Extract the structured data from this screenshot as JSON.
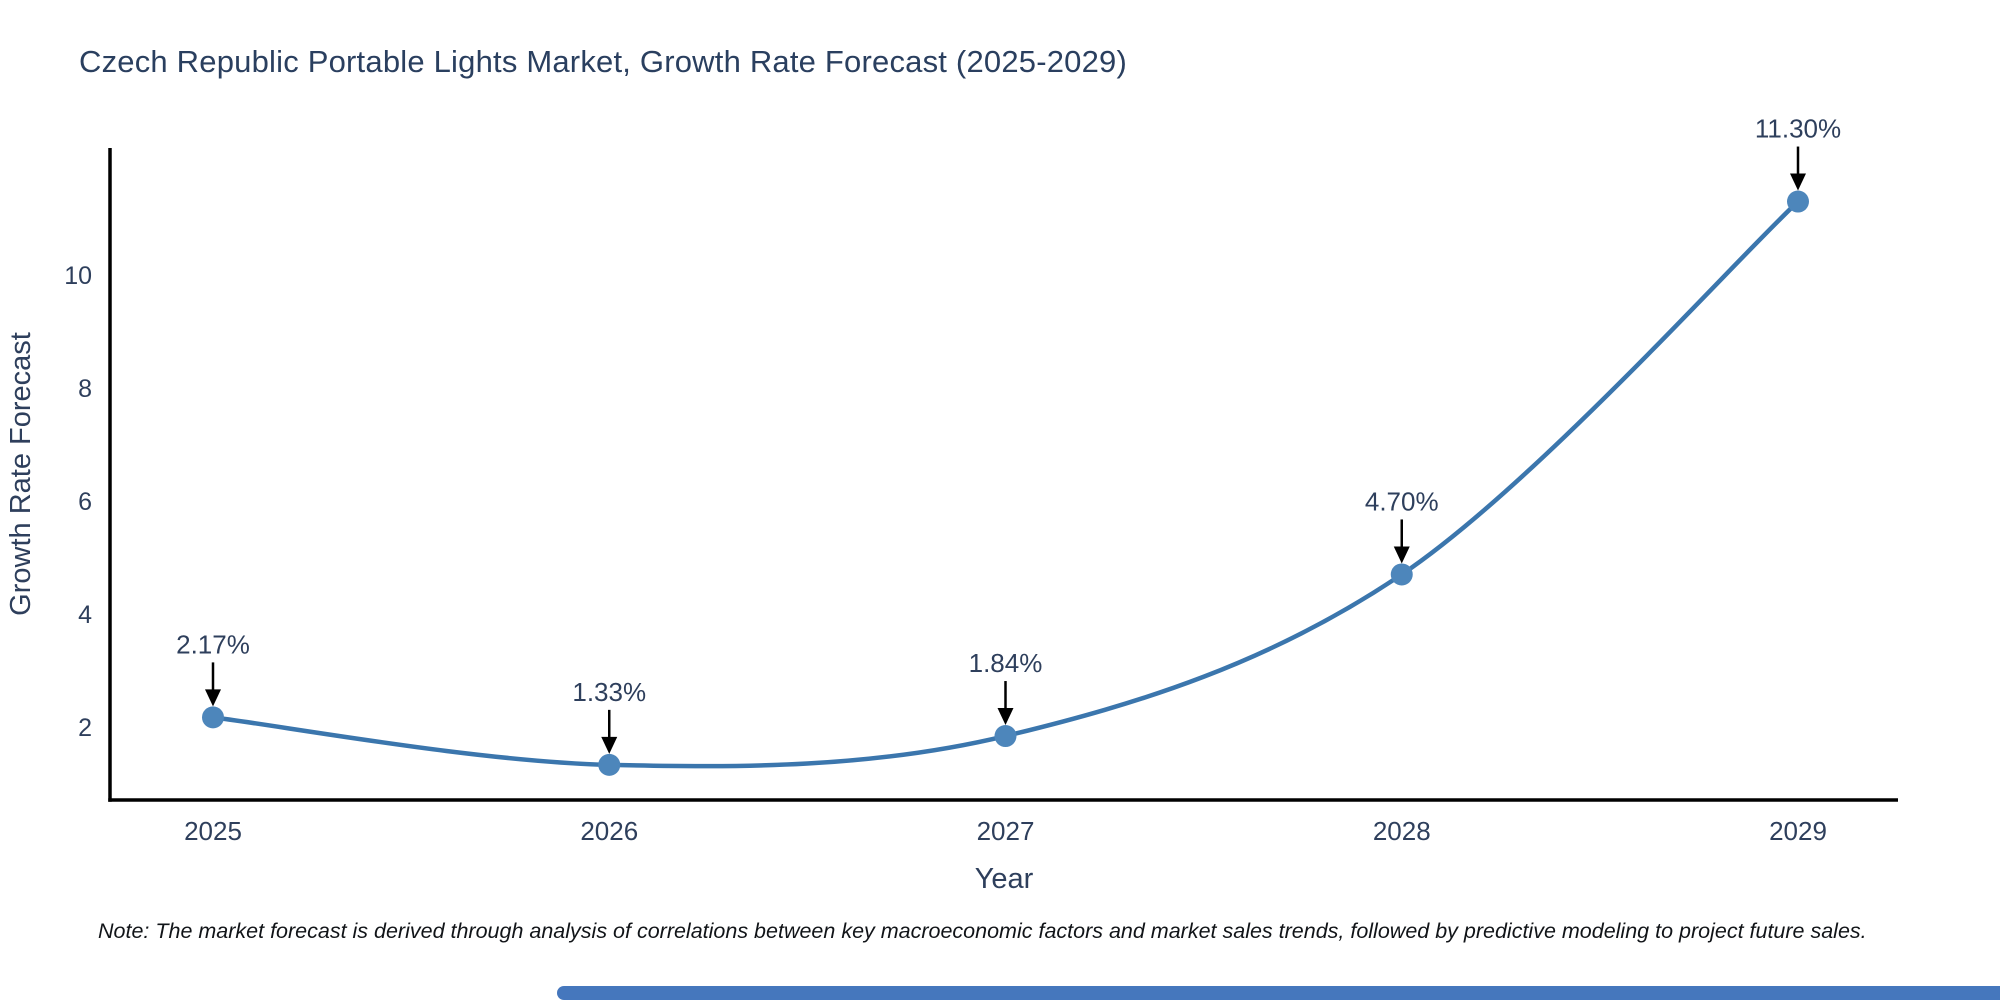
{
  "title": "Czech Republic Portable Lights Market, Growth Rate Forecast (2025-2029)",
  "note": "Note: The market forecast is derived through analysis of correlations between key macroeconomic factors and market sales trends, followed by predictive modeling to project future sales.",
  "colors": {
    "line": "#3b76ad",
    "marker": "#4d86bb",
    "axis": "#000000",
    "title_text": "#2a3f5f",
    "tick_text": "#2e3f5c",
    "annotation_text": "#2e3f5c",
    "arrow": "#000000",
    "note_text": "#111418",
    "scrollbar_thumb": "#4577bd",
    "background": "#ffffff"
  },
  "chart_data": {
    "type": "line",
    "line_shape": "spline",
    "title": "Czech Republic Portable Lights Market, Growth Rate Forecast (2025-2029)",
    "xlabel": "Year",
    "ylabel": "Growth Rate Forecast",
    "x": [
      2025,
      2026,
      2027,
      2028,
      2029
    ],
    "values": [
      2.17,
      1.33,
      1.84,
      4.7,
      11.3
    ],
    "point_labels": [
      "2.17%",
      "1.33%",
      "1.84%",
      "4.70%",
      "11.30%"
    ],
    "xtick_labels": [
      "2025",
      "2026",
      "2027",
      "2028",
      "2029"
    ],
    "ytick_values": [
      2,
      4,
      6,
      8,
      10
    ],
    "ylim": [
      0.71,
      12.25
    ],
    "xlim": [
      2024.74,
      2029.25
    ],
    "grid": false,
    "legend": "none",
    "annotations_have_arrows": true
  }
}
